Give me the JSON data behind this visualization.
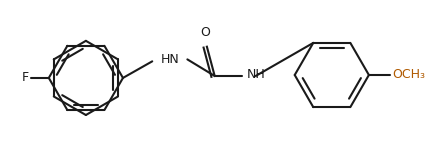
{
  "background": "#ffffff",
  "bond_color": "#1a1a1a",
  "text_color": "#1a1a1a",
  "oc_color": "#b05a00",
  "label_F": "F",
  "label_HN": "HN",
  "label_NH": "NH",
  "label_O": "O",
  "label_OCH3": "OCH₃",
  "figsize": [
    4.3,
    1.5
  ],
  "dpi": 100,
  "bond_lw": 1.4
}
